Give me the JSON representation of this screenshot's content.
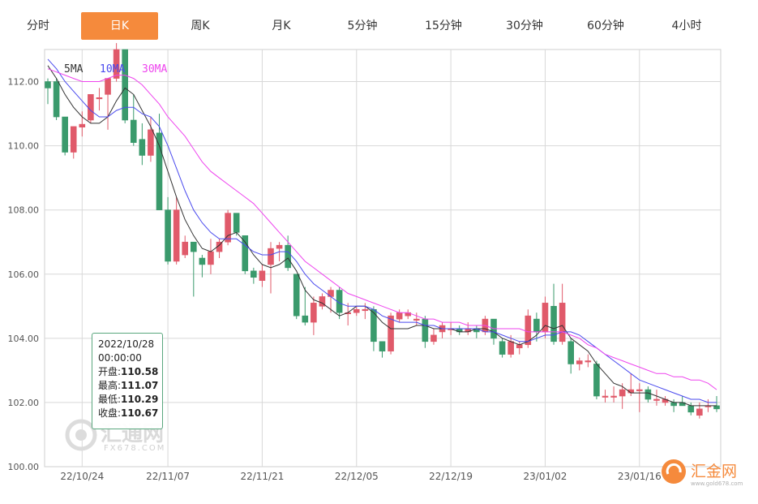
{
  "tabs": [
    {
      "label": "分时",
      "active": false
    },
    {
      "label": "日K",
      "active": true
    },
    {
      "label": "周K",
      "active": false
    },
    {
      "label": "月K",
      "active": false
    },
    {
      "label": "5分钟",
      "active": false
    },
    {
      "label": "15分钟",
      "active": false
    },
    {
      "label": "30分钟",
      "active": false
    },
    {
      "label": "60分钟",
      "active": false
    },
    {
      "label": "4小时",
      "active": false
    }
  ],
  "tooltip": {
    "date": "2022/10/28",
    "time": "00:00:00",
    "open_label": "开盘:",
    "open": "110.58",
    "high_label": "最高:",
    "high": "111.07",
    "low_label": "最低:",
    "low": "110.29",
    "close_label": "收盘:",
    "close": "110.67"
  },
  "watermarks": {
    "center_text": "汇通网",
    "center_sub": "FX678.COM",
    "corner_text": "汇金网",
    "corner_sub": "www.gold678.com"
  },
  "colors": {
    "up": "#e05a6a",
    "down": "#3a9a6c",
    "ma5": "#333333",
    "ma10": "#4a4aee",
    "ma30": "#ee44ee",
    "accent": "#f58a3c",
    "grid": "#d8d8d8"
  },
  "chart_data": {
    "type": "candlestick",
    "ylim": [
      100,
      113
    ],
    "yticks": [
      "112.00",
      "110.00",
      "108.00",
      "106.00",
      "104.00",
      "102.00",
      "100.00"
    ],
    "ytick_values": [
      112,
      110,
      108,
      106,
      104,
      102,
      100
    ],
    "xticks": [
      "22/10/24",
      "22/11/07",
      "22/11/21",
      "22/12/05",
      "22/12/19",
      "23/01/02",
      "23/01/16"
    ],
    "xtick_index": [
      4,
      14,
      25,
      36,
      47,
      58,
      69
    ],
    "legend": [
      "5MA",
      "10MA",
      "30MA"
    ],
    "candles": [
      [
        112.0,
        111.8,
        112.1,
        111.3
      ],
      [
        112.0,
        110.9,
        112.1,
        110.8
      ],
      [
        110.9,
        109.8,
        110.9,
        109.7
      ],
      [
        109.8,
        110.6,
        110.6,
        109.6
      ],
      [
        110.58,
        110.67,
        111.07,
        110.29
      ],
      [
        110.8,
        111.6,
        111.6,
        110.7
      ],
      [
        111.5,
        111.5,
        111.8,
        111.1
      ],
      [
        111.6,
        112.1,
        112.1,
        110.5
      ],
      [
        112.1,
        113.0,
        113.2,
        112.0
      ],
      [
        113.0,
        110.8,
        113.0,
        110.7
      ],
      [
        110.8,
        110.1,
        111.6,
        110.0
      ],
      [
        110.2,
        109.7,
        110.7,
        109.4
      ],
      [
        109.7,
        110.5,
        110.9,
        109.5
      ],
      [
        110.4,
        108.0,
        111.0,
        108.0
      ],
      [
        108.0,
        106.4,
        108.4,
        106.3
      ],
      [
        106.4,
        108.0,
        108.4,
        106.3
      ],
      [
        106.6,
        107.0,
        107.2,
        106.5
      ],
      [
        107.0,
        106.7,
        107.0,
        105.3
      ],
      [
        106.5,
        106.3,
        106.6,
        105.9
      ],
      [
        106.3,
        106.7,
        107.1,
        106.0
      ],
      [
        106.7,
        107.0,
        107.1,
        106.5
      ],
      [
        107.0,
        107.9,
        108.0,
        106.9
      ],
      [
        107.9,
        107.3,
        107.9,
        107.2
      ],
      [
        107.2,
        106.1,
        107.2,
        106.0
      ],
      [
        106.1,
        105.9,
        106.2,
        105.7
      ],
      [
        105.8,
        106.1,
        106.3,
        105.6
      ],
      [
        106.3,
        106.8,
        107.0,
        105.4
      ],
      [
        106.8,
        106.9,
        107.0,
        106.4
      ],
      [
        106.9,
        106.2,
        107.2,
        106.1
      ],
      [
        106.0,
        104.7,
        106.0,
        104.6
      ],
      [
        104.7,
        104.5,
        105.6,
        104.4
      ],
      [
        104.5,
        105.1,
        105.3,
        104.1
      ],
      [
        105.0,
        105.3,
        105.4,
        104.9
      ],
      [
        105.3,
        105.5,
        105.6,
        104.8
      ],
      [
        105.5,
        104.8,
        105.6,
        104.6
      ],
      [
        104.8,
        104.8,
        105.1,
        104.4
      ],
      [
        104.8,
        104.9,
        105.0,
        104.7
      ],
      [
        104.9,
        104.9,
        105.1,
        104.6
      ],
      [
        104.9,
        103.9,
        105.0,
        103.6
      ],
      [
        103.9,
        103.6,
        103.9,
        103.4
      ],
      [
        103.6,
        104.7,
        104.8,
        103.5
      ],
      [
        104.6,
        104.8,
        104.9,
        104.5
      ],
      [
        104.7,
        104.8,
        104.9,
        104.6
      ],
      [
        104.6,
        104.6,
        104.8,
        104.4
      ],
      [
        104.6,
        103.9,
        104.7,
        103.7
      ],
      [
        103.9,
        104.1,
        104.3,
        103.8
      ],
      [
        104.2,
        104.4,
        104.5,
        104.0
      ],
      [
        104.3,
        104.3,
        104.5,
        104.1
      ],
      [
        104.3,
        104.2,
        104.4,
        104.1
      ],
      [
        104.2,
        104.3,
        104.5,
        104.1
      ],
      [
        104.3,
        104.2,
        104.4,
        104.0
      ],
      [
        104.2,
        104.6,
        104.7,
        104.1
      ],
      [
        104.6,
        104.0,
        104.6,
        103.8
      ],
      [
        103.9,
        103.5,
        104.0,
        103.4
      ],
      [
        103.5,
        103.9,
        104.1,
        103.4
      ],
      [
        103.7,
        103.8,
        103.9,
        103.5
      ],
      [
        103.8,
        104.7,
        104.9,
        103.7
      ],
      [
        104.6,
        104.2,
        104.8,
        103.9
      ],
      [
        104.2,
        105.1,
        105.3,
        104.0
      ],
      [
        105.0,
        103.9,
        105.7,
        103.8
      ],
      [
        103.9,
        105.1,
        105.7,
        103.8
      ],
      [
        103.9,
        103.2,
        104.0,
        102.9
      ],
      [
        103.2,
        103.3,
        103.4,
        103.0
      ],
      [
        103.3,
        103.3,
        103.5,
        103.1
      ],
      [
        103.2,
        102.2,
        103.3,
        102.1
      ],
      [
        102.2,
        102.2,
        102.4,
        102.0
      ],
      [
        102.2,
        102.2,
        102.5,
        102.0
      ],
      [
        102.2,
        102.4,
        102.6,
        101.8
      ],
      [
        102.3,
        102.4,
        102.9,
        102.2
      ],
      [
        102.4,
        102.4,
        102.6,
        101.7
      ],
      [
        102.4,
        102.1,
        102.5,
        102.0
      ],
      [
        102.1,
        102.1,
        102.4,
        101.9
      ],
      [
        102.0,
        102.1,
        102.2,
        101.9
      ],
      [
        102.0,
        101.9,
        102.1,
        101.7
      ],
      [
        102.0,
        101.9,
        102.2,
        101.9
      ],
      [
        101.9,
        101.7,
        102.0,
        101.6
      ],
      [
        101.6,
        101.8,
        102.0,
        101.5
      ],
      [
        101.9,
        101.9,
        102.1,
        101.7
      ],
      [
        101.9,
        101.8,
        102.2,
        101.7
      ]
    ],
    "ma5": [
      112.5,
      112.1,
      111.6,
      111.2,
      110.9,
      110.7,
      110.7,
      110.9,
      111.4,
      111.8,
      111.6,
      111.1,
      110.6,
      110.0,
      109.2,
      108.4,
      107.7,
      107.2,
      106.8,
      106.7,
      106.9,
      107.2,
      107.3,
      107.0,
      106.6,
      106.3,
      106.2,
      106.3,
      106.5,
      106.1,
      105.5,
      105.2,
      105.1,
      104.9,
      104.7,
      104.8,
      105.0,
      105.0,
      104.8,
      104.5,
      104.3,
      104.3,
      104.3,
      104.4,
      104.4,
      104.3,
      104.3,
      104.3,
      104.2,
      104.2,
      104.3,
      104.3,
      104.2,
      104.0,
      103.9,
      103.8,
      103.9,
      104.1,
      104.4,
      104.3,
      104.4,
      104.0,
      103.8,
      103.6,
      103.2,
      102.9,
      102.6,
      102.5,
      102.3,
      102.3,
      102.3,
      102.2,
      102.1,
      102.0,
      102.0,
      101.9,
      101.9,
      101.9,
      101.9
    ],
    "ma10": [
      112.7,
      112.4,
      112.0,
      111.7,
      111.4,
      111.1,
      110.9,
      110.9,
      111.1,
      111.2,
      111.2,
      111.0,
      110.9,
      110.6,
      110.0,
      109.3,
      108.6,
      108.0,
      107.6,
      107.3,
      107.1,
      107.1,
      107.1,
      106.9,
      106.7,
      106.6,
      106.6,
      106.7,
      106.7,
      106.4,
      106.0,
      105.7,
      105.5,
      105.3,
      105.1,
      105.0,
      105.0,
      105.0,
      104.9,
      104.7,
      104.6,
      104.5,
      104.5,
      104.5,
      104.4,
      104.4,
      104.3,
      104.3,
      104.3,
      104.3,
      104.3,
      104.2,
      104.2,
      104.1,
      104.0,
      103.9,
      103.9,
      104.0,
      104.1,
      104.1,
      104.2,
      104.2,
      104.1,
      103.9,
      103.7,
      103.5,
      103.3,
      103.1,
      102.9,
      102.7,
      102.6,
      102.5,
      102.4,
      102.3,
      102.2,
      102.1,
      102.1,
      102.0,
      102.0
    ],
    "ma30": [
      112.4,
      112.3,
      112.2,
      112.1,
      112.0,
      112.0,
      112.0,
      112.1,
      112.2,
      112.2,
      112.1,
      111.9,
      111.6,
      111.3,
      110.9,
      110.6,
      110.3,
      109.9,
      109.5,
      109.2,
      109.0,
      108.8,
      108.6,
      108.4,
      108.2,
      107.9,
      107.6,
      107.3,
      107.0,
      106.7,
      106.4,
      106.2,
      106.0,
      105.8,
      105.6,
      105.4,
      105.3,
      105.2,
      105.1,
      105.0,
      104.9,
      104.8,
      104.8,
      104.7,
      104.6,
      104.6,
      104.5,
      104.5,
      104.5,
      104.4,
      104.4,
      104.4,
      104.3,
      104.3,
      104.3,
      104.3,
      104.2,
      104.2,
      104.2,
      104.2,
      104.2,
      104.1,
      104.0,
      103.8,
      103.7,
      103.5,
      103.4,
      103.3,
      103.2,
      103.1,
      103.0,
      102.9,
      102.9,
      102.8,
      102.8,
      102.7,
      102.7,
      102.6,
      102.4
    ]
  }
}
